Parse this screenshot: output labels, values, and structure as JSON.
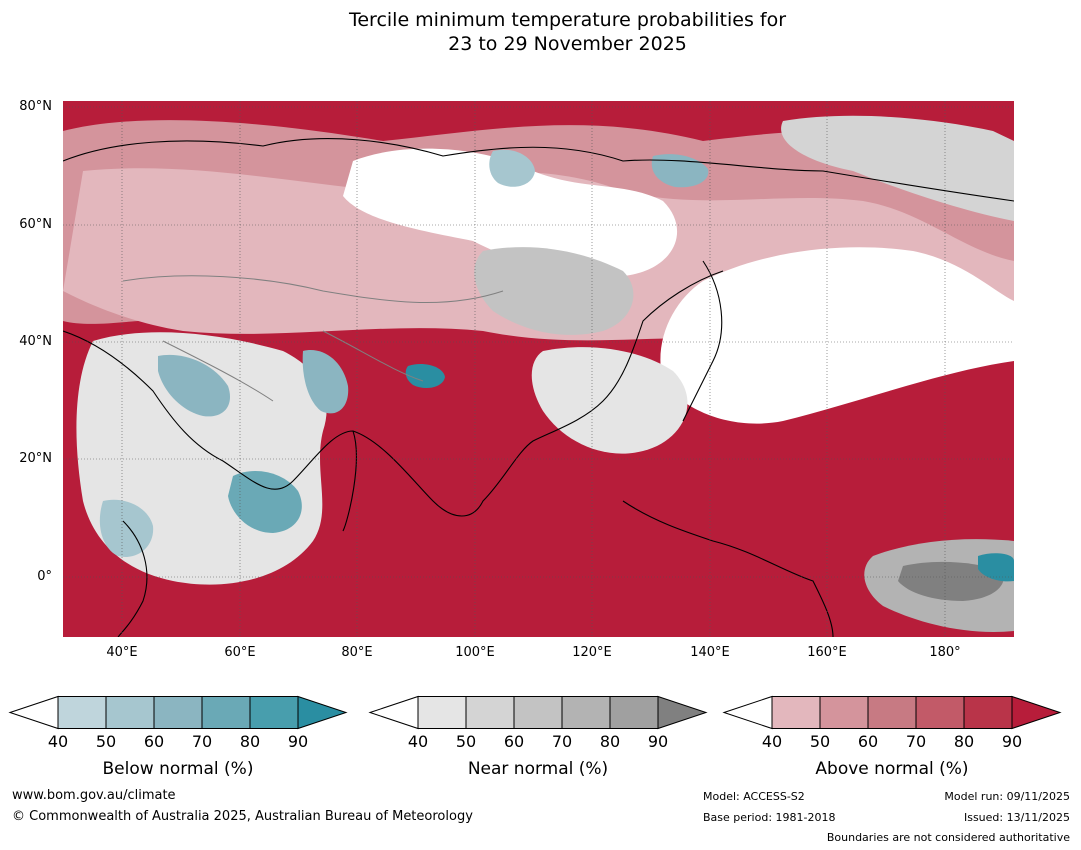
{
  "title": {
    "line1": "Tercile minimum temperature probabilities for",
    "line2": "23 to 29 November 2025"
  },
  "map": {
    "lat_labels": [
      "80°N",
      "60°N",
      "40°N",
      "20°N",
      "0°"
    ],
    "lon_labels": [
      "40°E",
      "60°E",
      "80°E",
      "100°E",
      "120°E",
      "140°E",
      "160°E",
      "180°"
    ],
    "colors": {
      "above_dominant": "#b71d3a",
      "near_neutral": "#ffffff",
      "coastline": "#000000",
      "borders": "#808080"
    }
  },
  "colorbars": [
    {
      "label": "Below normal (%)",
      "ticks": [
        "40",
        "50",
        "60",
        "70",
        "80",
        "90"
      ],
      "colors": [
        "#bfd5dc",
        "#a6c6cf",
        "#8bb5c1",
        "#6aa9b6",
        "#489ead",
        "#2a8ea2"
      ]
    },
    {
      "label": "Near normal (%)",
      "ticks": [
        "40",
        "50",
        "60",
        "70",
        "80",
        "90"
      ],
      "colors": [
        "#e5e5e5",
        "#d4d4d4",
        "#c3c3c3",
        "#b3b3b3",
        "#a0a0a0",
        "#808080"
      ]
    },
    {
      "label": "Above normal (%)",
      "ticks": [
        "40",
        "50",
        "60",
        "70",
        "80",
        "90"
      ],
      "colors": [
        "#e3b7bd",
        "#d4949c",
        "#c77a83",
        "#c25a68",
        "#b93449",
        "#b71d3a"
      ]
    }
  ],
  "footer": {
    "url": "www.bom.gov.au/climate",
    "copyright": "© Commonwealth of Australia 2025, Australian Bureau of Meteorology",
    "model": "Model: ACCESS-S2",
    "base_period": "Base period: 1981-2018",
    "model_run": "Model run: 09/11/2025",
    "issued": "Issued: 13/11/2025",
    "disclaimer": "Boundaries are not considered authoritative"
  }
}
